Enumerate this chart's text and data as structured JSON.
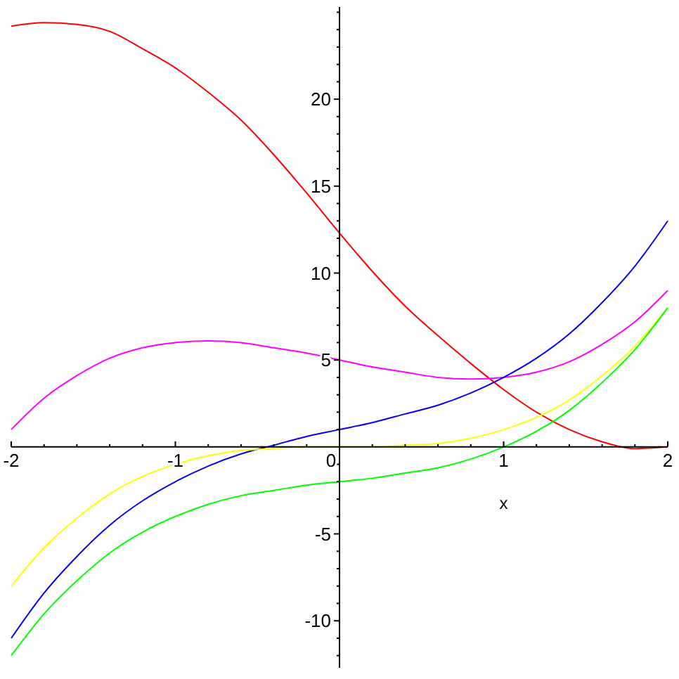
{
  "chart_data": {
    "type": "line",
    "xlabel": "x",
    "x": [
      -2,
      -1.8,
      -1.6,
      -1.4,
      -1.2,
      -1,
      -0.8,
      -0.6,
      -0.4,
      -0.2,
      0,
      0.2,
      0.4,
      0.6,
      0.8,
      1,
      1.2,
      1.4,
      1.6,
      1.8,
      2
    ],
    "series": [
      {
        "color": "#ff0000",
        "values": [
          24.2,
          24.4,
          24.3,
          23.9,
          22.9,
          21.8,
          20.4,
          18.8,
          16.8,
          14.6,
          12.3,
          10.1,
          8.1,
          6.4,
          4.8,
          3.3,
          2.0,
          1.0,
          0.3,
          -0.1,
          0
        ]
      },
      {
        "color": "#ff00ff",
        "values": [
          1,
          2.8,
          4.1,
          5.1,
          5.7,
          6,
          6.1,
          6.0,
          5.7,
          5.4,
          5,
          4.6,
          4.3,
          4.0,
          3.9,
          4,
          4.3,
          4.9,
          5.9,
          7.2,
          9
        ]
      },
      {
        "color": "#0000ff",
        "values": [
          -11,
          -8.4,
          -6.3,
          -4.5,
          -3.1,
          -2,
          -1.1,
          -0.4,
          0.1,
          0.6,
          1,
          1.4,
          1.9,
          2.4,
          3.1,
          4,
          5.1,
          6.5,
          8.3,
          10.4,
          13
        ]
      },
      {
        "color": "#ffff00",
        "values": [
          -8,
          -5.8,
          -4.1,
          -2.7,
          -1.7,
          -1,
          -0.5,
          -0.2,
          -0.1,
          0,
          0,
          0,
          0.1,
          0.2,
          0.5,
          1,
          1.7,
          2.7,
          4.1,
          5.8,
          8
        ]
      },
      {
        "color": "#00ff00",
        "values": [
          -12,
          -9.6,
          -7.7,
          -6.1,
          -4.9,
          -4,
          -3.3,
          -2.8,
          -2.5,
          -2.2,
          -2,
          -1.8,
          -1.5,
          -1.2,
          -0.7,
          0,
          0.9,
          2.1,
          3.7,
          5.6,
          8
        ]
      }
    ],
    "xlim": [
      -2,
      2
    ],
    "ylim": [
      -12.7,
      25.3
    ],
    "xticks": [
      -2,
      {
        "value": -1.8,
        "label": null
      },
      {
        "value": -1.6,
        "label": null
      },
      {
        "value": -1.4,
        "label": null
      },
      {
        "value": -1.2,
        "label": null
      },
      -1,
      {
        "value": -0.8,
        "label": null
      },
      {
        "value": -0.6,
        "label": null
      },
      {
        "value": -0.4,
        "label": null
      },
      {
        "value": -0.2,
        "label": null
      },
      0,
      {
        "value": 0.2,
        "label": null
      },
      {
        "value": 0.4,
        "label": null
      },
      {
        "value": 0.6,
        "label": null
      },
      {
        "value": 0.8,
        "label": null
      },
      1,
      {
        "value": 1.2,
        "label": null
      },
      {
        "value": 1.4,
        "label": null
      },
      {
        "value": 1.6,
        "label": null
      },
      {
        "value": 1.8,
        "label": null
      },
      2
    ],
    "yticks": [
      {
        "value": -12,
        "label": null
      },
      {
        "value": -11,
        "label": null
      },
      -10,
      {
        "value": -9,
        "label": null
      },
      {
        "value": -8,
        "label": null
      },
      {
        "value": -7,
        "label": null
      },
      {
        "value": -6,
        "label": null
      },
      -5,
      {
        "value": -4,
        "label": null
      },
      {
        "value": -3,
        "label": null
      },
      {
        "value": -2,
        "label": null
      },
      {
        "value": -1,
        "label": null
      },
      {
        "value": 1,
        "label": null
      },
      {
        "value": 2,
        "label": null
      },
      {
        "value": 3,
        "label": null
      },
      {
        "value": 4,
        "label": null
      },
      5,
      {
        "value": 6,
        "label": null
      },
      {
        "value": 7,
        "label": null
      },
      {
        "value": 8,
        "label": null
      },
      {
        "value": 9,
        "label": null
      },
      10,
      {
        "value": 11,
        "label": null
      },
      {
        "value": 12,
        "label": null
      },
      {
        "value": 13,
        "label": null
      },
      {
        "value": 14,
        "label": null
      },
      15,
      {
        "value": 16,
        "label": null
      },
      {
        "value": 17,
        "label": null
      },
      {
        "value": 18,
        "label": null
      },
      {
        "value": 19,
        "label": null
      },
      20,
      {
        "value": 21,
        "label": null
      },
      {
        "value": 22,
        "label": null
      },
      {
        "value": 23,
        "label": null
      },
      {
        "value": 24,
        "label": null
      },
      {
        "value": 25,
        "label": null
      }
    ],
    "grid": false,
    "marker": "none",
    "line_style": "solid"
  }
}
